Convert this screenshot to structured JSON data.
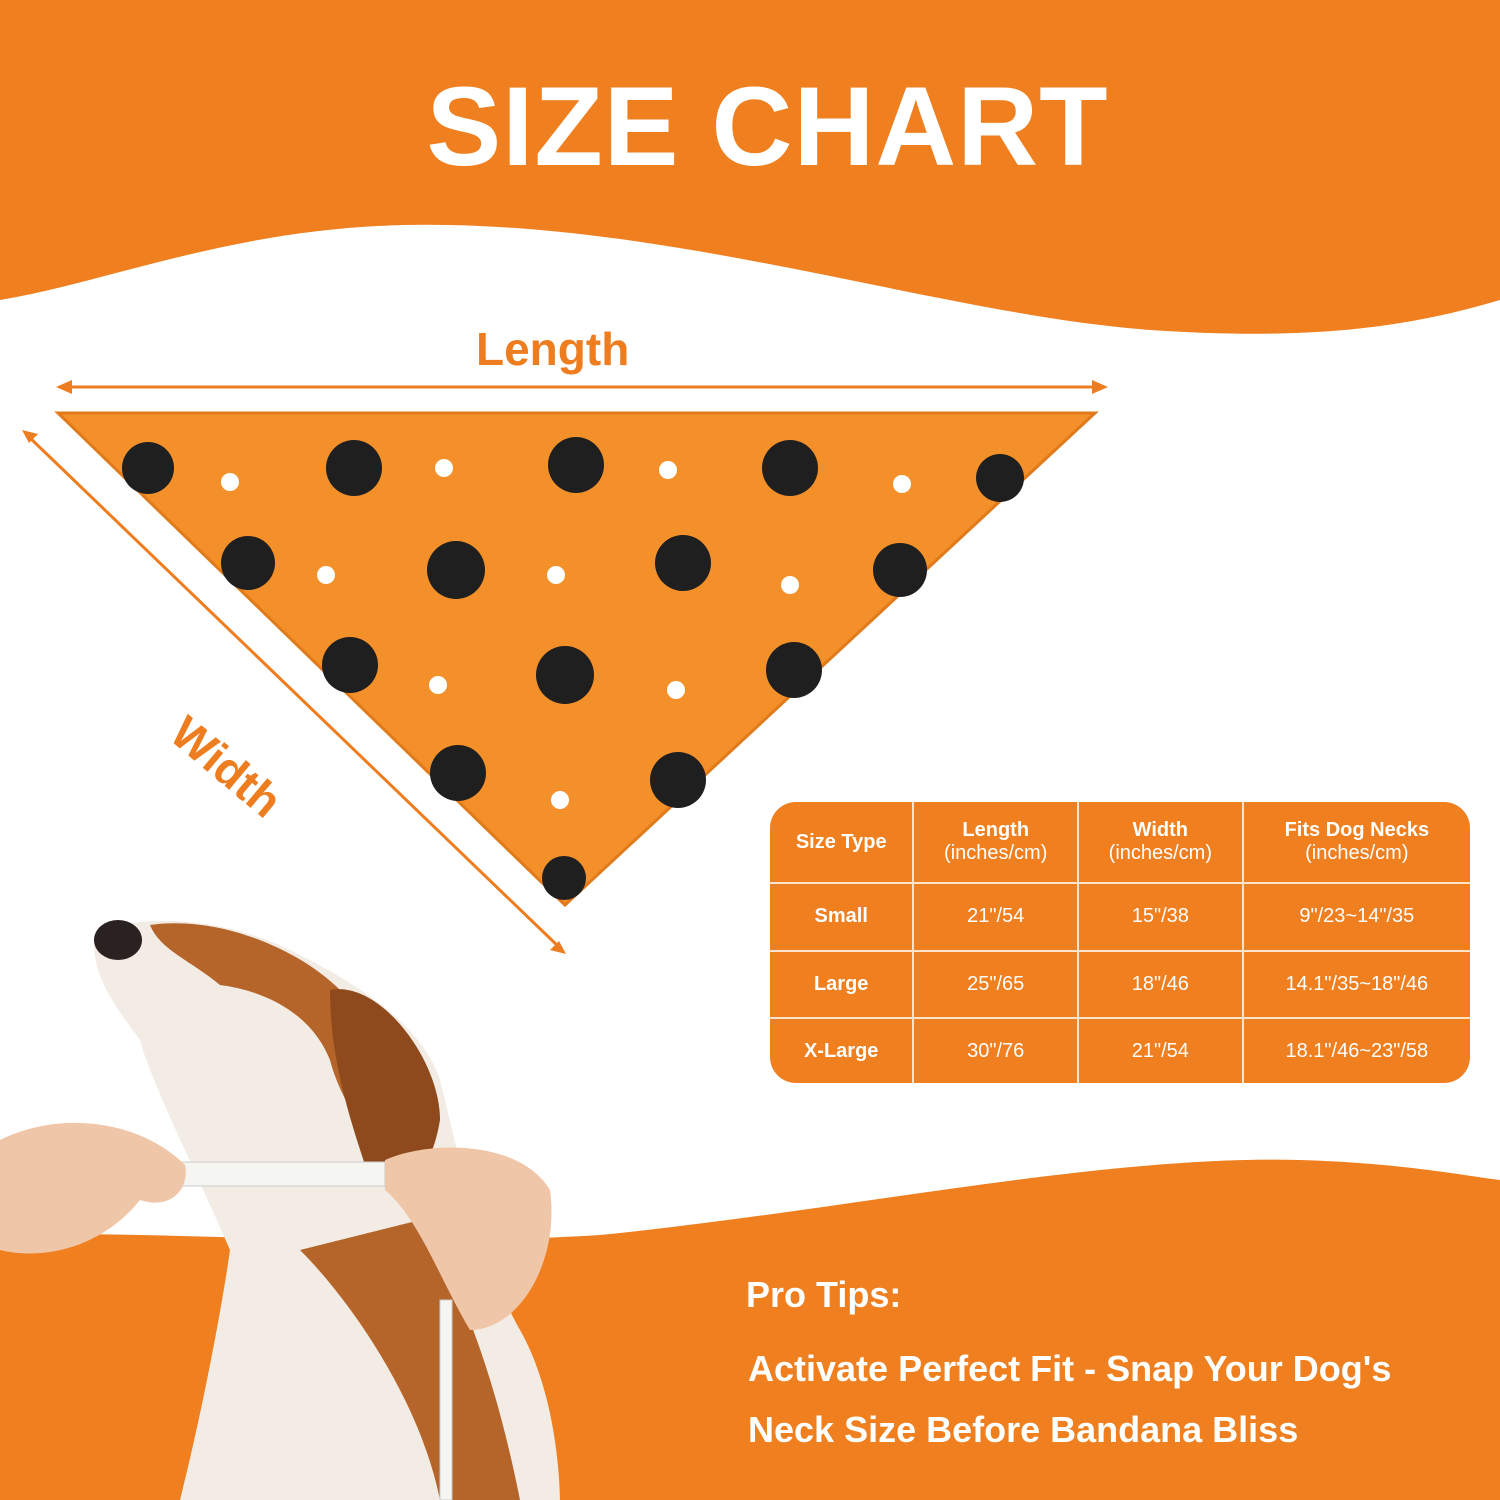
{
  "title": "SIZE CHART",
  "diagram": {
    "length_label": "Length",
    "width_label": "Width"
  },
  "colors": {
    "brand_orange": "#ef7f1f",
    "bandana": "#f4902a",
    "text_light": "#ffffff"
  },
  "table": {
    "headers": [
      {
        "label": "Size Type",
        "sub": ""
      },
      {
        "label": "Length",
        "sub": "(inches/cm)"
      },
      {
        "label": "Width",
        "sub": "(inches/cm)"
      },
      {
        "label": "Fits Dog Necks",
        "sub": "(inches/cm)"
      }
    ],
    "rows": [
      [
        "Small",
        "21\"/54",
        "15\"/38",
        "9\"/23~14\"/35"
      ],
      [
        "Large",
        "25\"/65",
        "18\"/46",
        "14.1\"/35~18\"/46"
      ],
      [
        "X-Large",
        "30\"/76",
        "21\"/54",
        "18.1\"/46~23\"/58"
      ]
    ]
  },
  "tips": {
    "heading": "Pro Tips:",
    "line1": "Activate Perfect Fit - Snap Your Dog's",
    "line2": "Neck Size Before Bandana Bliss"
  }
}
